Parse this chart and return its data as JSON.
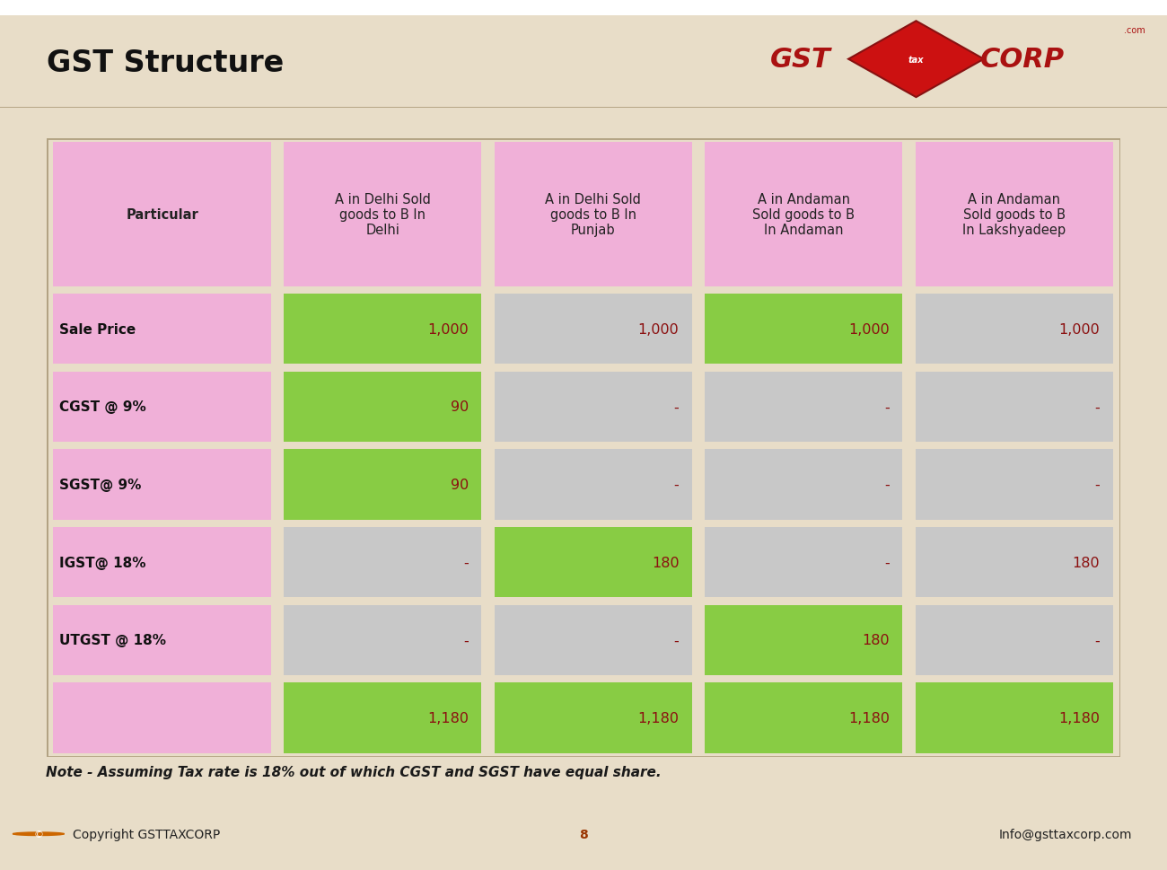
{
  "title": "GST Structure",
  "background_color": "#e8ddc8",
  "header_bg": "#e8ddc8",
  "title_color": "#111111",
  "title_fontsize": 24,
  "table_header_row": [
    "Particular",
    "A in Delhi Sold\ngoods to B In\nDelhi",
    "A in Delhi Sold\ngoods to B In\nPunjab",
    "A in Andaman\nSold goods to B\nIn Andaman",
    "A in Andaman\nSold goods to B\nIn Lakshyadeep"
  ],
  "table_rows": [
    [
      "Sale Price",
      "1,000",
      "1,000",
      "1,000",
      "1,000"
    ],
    [
      "CGST @ 9%",
      "90",
      "-",
      "-",
      "-"
    ],
    [
      "SGST@ 9%",
      "90",
      "-",
      "-",
      "-"
    ],
    [
      "IGST@ 18%",
      "-",
      "180",
      "-",
      "180"
    ],
    [
      "UTGST @ 18%",
      "-",
      "-",
      "180",
      "-"
    ],
    [
      "",
      "1,180",
      "1,180",
      "1,180",
      "1,180"
    ]
  ],
  "pink_color": "#f0b0d8",
  "green_color": "#88cc44",
  "gray_color": "#c8c8c8",
  "cell_colors": [
    [
      "#f0b0d8",
      "#88cc44",
      "#c8c8c8",
      "#88cc44",
      "#c8c8c8"
    ],
    [
      "#f0b0d8",
      "#88cc44",
      "#c8c8c8",
      "#c8c8c8",
      "#c8c8c8"
    ],
    [
      "#f0b0d8",
      "#88cc44",
      "#c8c8c8",
      "#c8c8c8",
      "#c8c8c8"
    ],
    [
      "#f0b0d8",
      "#c8c8c8",
      "#88cc44",
      "#c8c8c8",
      "#c8c8c8"
    ],
    [
      "#f0b0d8",
      "#c8c8c8",
      "#c8c8c8",
      "#88cc44",
      "#c8c8c8"
    ],
    [
      "#f0b0d8",
      "#88cc44",
      "#88cc44",
      "#88cc44",
      "#88cc44"
    ]
  ],
  "value_text_color": "#8b1010",
  "header_text_color": "#222222",
  "row_label_color": "#111111",
  "note": "Note - Assuming Tax rate is 18% out of which CGST and SGST have equal share.",
  "footer_left": "Copyright GSTTAXCORP",
  "footer_center": "8",
  "footer_right": "Info@gsttaxcorp.com",
  "separator_color": "#b0a080",
  "border_color": "#b0a080"
}
